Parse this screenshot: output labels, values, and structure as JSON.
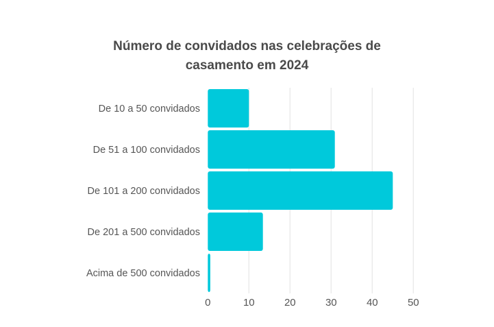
{
  "chart_data": {
    "type": "bar",
    "orientation": "horizontal",
    "title_lines": [
      "Número de convidados nas celebrações de",
      "casamento em 2024"
    ],
    "categories": [
      "De 10 a 50 convidados",
      "De 51 a 100 convidados",
      "De 101 a 200 convidados",
      "De 201 a 500 convidados",
      "Acima de 500 convidados"
    ],
    "values": [
      10,
      30.9,
      45,
      13.4,
      0.6
    ],
    "xlim": [
      0,
      50
    ],
    "xticks": [
      0,
      10,
      20,
      30,
      40,
      50
    ],
    "xlabel": "",
    "ylabel": "",
    "grid": "vertical",
    "bar_color": "#00c9db",
    "grid_color": "#ebebeb"
  }
}
